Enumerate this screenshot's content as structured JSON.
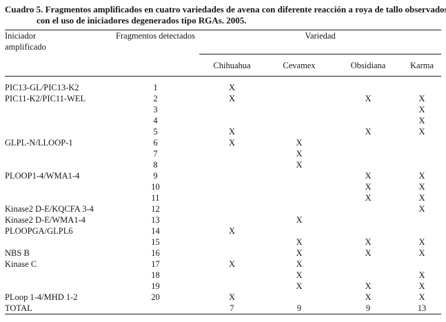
{
  "title": {
    "line1": "Cuadro 5. Fragmentos amplificados en cuatro variedades de avena con diferente reacción a roya de tallo observados",
    "line2": "con el uso de iniciadores degenerados tipo RGAs. 2005."
  },
  "table": {
    "col1_header_line1": "Iniciador",
    "col1_header_line2": "amplificado",
    "col2_header": "Fragmentos detectados",
    "group_header": "Variedad",
    "varieties": [
      "Chihuahua",
      "Cevamex",
      "Obsidiana",
      "Karma"
    ],
    "rows": [
      {
        "iniciador": "PIC13-GL/PIC13-K2",
        "fragmento": "1",
        "marks": [
          "X",
          "",
          "",
          ""
        ]
      },
      {
        "iniciador": "PIC11-K2/PIC11-WEL",
        "fragmento": "2",
        "marks": [
          "X",
          "",
          "X",
          "X"
        ]
      },
      {
        "iniciador": "",
        "fragmento": "3",
        "marks": [
          "",
          "",
          "",
          "X"
        ]
      },
      {
        "iniciador": "",
        "fragmento": "4",
        "marks": [
          "",
          "",
          "",
          "X"
        ]
      },
      {
        "iniciador": "",
        "fragmento": "5",
        "marks": [
          "X",
          "",
          "X",
          "X"
        ]
      },
      {
        "iniciador": "GLPL-N/LLOOP-1",
        "fragmento": "6",
        "marks": [
          "X",
          "X",
          "",
          ""
        ]
      },
      {
        "iniciador": "",
        "fragmento": "7",
        "marks": [
          "",
          "X",
          "",
          ""
        ]
      },
      {
        "iniciador": "",
        "fragmento": "8",
        "marks": [
          "",
          "X",
          "",
          ""
        ]
      },
      {
        "iniciador": "PLOOP1-4/WMA1-4",
        "fragmento": "9",
        "marks": [
          "",
          "",
          "X",
          "X"
        ]
      },
      {
        "iniciador": "",
        "fragmento": "10",
        "marks": [
          "",
          "",
          "X",
          "X"
        ]
      },
      {
        "iniciador": "",
        "fragmento": "11",
        "marks": [
          "",
          "",
          "X",
          "X"
        ]
      },
      {
        "iniciador": "Kinase2 D-E/KQCFA 3-4",
        "fragmento": "12",
        "marks": [
          "",
          "",
          "",
          "X"
        ]
      },
      {
        "iniciador": "Kinase2 D-E/WMA1-4",
        "fragmento": "13",
        "marks": [
          "",
          "X",
          "",
          ""
        ]
      },
      {
        "iniciador": "PLOOPGA/GLPL6",
        "fragmento": "14",
        "marks": [
          "X",
          "",
          "",
          ""
        ]
      },
      {
        "iniciador": "",
        "fragmento": "15",
        "marks": [
          "",
          "X",
          "X",
          "X"
        ]
      },
      {
        "iniciador": "NBS B",
        "fragmento": "16",
        "marks": [
          "",
          "X",
          "X",
          "X"
        ]
      },
      {
        "iniciador": "Kinase C",
        "fragmento": "17",
        "marks": [
          "X",
          "X",
          "",
          ""
        ]
      },
      {
        "iniciador": "",
        "fragmento": "18",
        "marks": [
          "",
          "X",
          "",
          "X"
        ]
      },
      {
        "iniciador": "",
        "fragmento": "19",
        "marks": [
          "",
          "X",
          "X",
          "X"
        ]
      },
      {
        "iniciador": "PLoop 1-4/MHD 1-2",
        "fragmento": "20",
        "marks": [
          "X",
          "",
          "X",
          "X"
        ]
      }
    ],
    "total": {
      "label": "TOTAL",
      "fragmento": "",
      "values": [
        "7",
        "9",
        "9",
        "13"
      ]
    }
  },
  "colors": {
    "background": "#ffffff",
    "text": "#161616",
    "rule": "#1c1c1c"
  }
}
